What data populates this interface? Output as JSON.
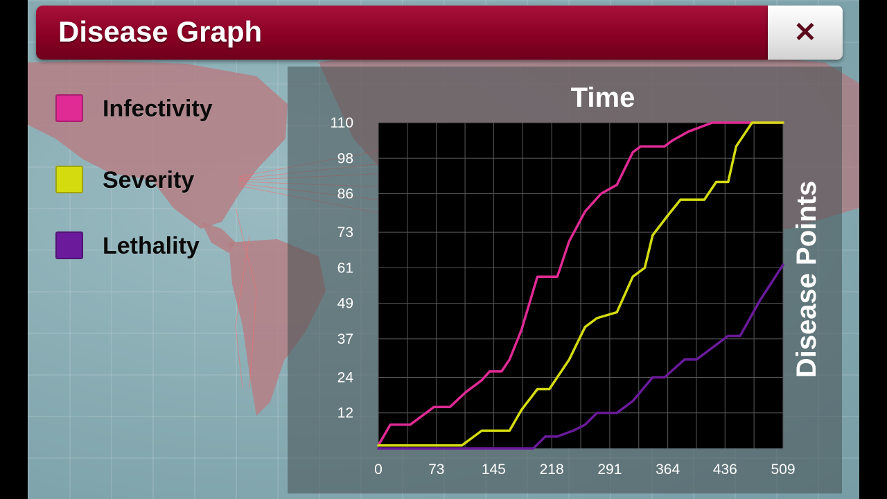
{
  "window": {
    "title": "Disease Graph",
    "close_icon": "close-icon"
  },
  "legend": [
    {
      "label": "Infectivity",
      "color": "#e02a94"
    },
    {
      "label": "Severity",
      "color": "#d4dc10"
    },
    {
      "label": "Lethality",
      "color": "#6a1a9a"
    }
  ],
  "chart_data": {
    "type": "line",
    "title": "Time",
    "xlabel": "",
    "ylabel": "Disease Points",
    "x_ticks": [
      0,
      73,
      145,
      218,
      291,
      364,
      436,
      509
    ],
    "y_ticks": [
      12,
      24,
      37,
      49,
      61,
      73,
      86,
      98,
      110
    ],
    "xlim": [
      0,
      509
    ],
    "ylim": [
      0,
      110
    ],
    "grid": true,
    "background": "#000000",
    "series": [
      {
        "name": "Infectivity",
        "color": "#e02a94",
        "x": [
          0,
          15,
          40,
          70,
          90,
          110,
          130,
          140,
          155,
          165,
          180,
          200,
          225,
          240,
          260,
          280,
          300,
          320,
          330,
          360,
          370,
          390,
          420,
          440,
          460,
          509
        ],
        "y": [
          1,
          8,
          8,
          14,
          14,
          19,
          23,
          26,
          26,
          30,
          40,
          58,
          58,
          70,
          80,
          86,
          89,
          100,
          102,
          102,
          104,
          107,
          110,
          110,
          110,
          110
        ]
      },
      {
        "name": "Severity",
        "color": "#d4dc10",
        "x": [
          0,
          105,
          130,
          165,
          180,
          200,
          215,
          240,
          260,
          275,
          300,
          320,
          335,
          345,
          365,
          380,
          395,
          410,
          425,
          440,
          450,
          470,
          509
        ],
        "y": [
          1,
          1,
          6,
          6,
          13,
          20,
          20,
          30,
          41,
          44,
          46,
          58,
          61,
          72,
          79,
          84,
          84,
          84,
          90,
          90,
          102,
          110,
          110
        ]
      },
      {
        "name": "Lethality",
        "color": "#6a1a9a",
        "x": [
          0,
          195,
          210,
          225,
          245,
          260,
          275,
          300,
          320,
          345,
          360,
          385,
          400,
          420,
          440,
          455,
          480,
          509
        ],
        "y": [
          0,
          0,
          4,
          4,
          6,
          8,
          12,
          12,
          16,
          24,
          24,
          30,
          30,
          34,
          38,
          38,
          50,
          62
        ]
      }
    ]
  }
}
